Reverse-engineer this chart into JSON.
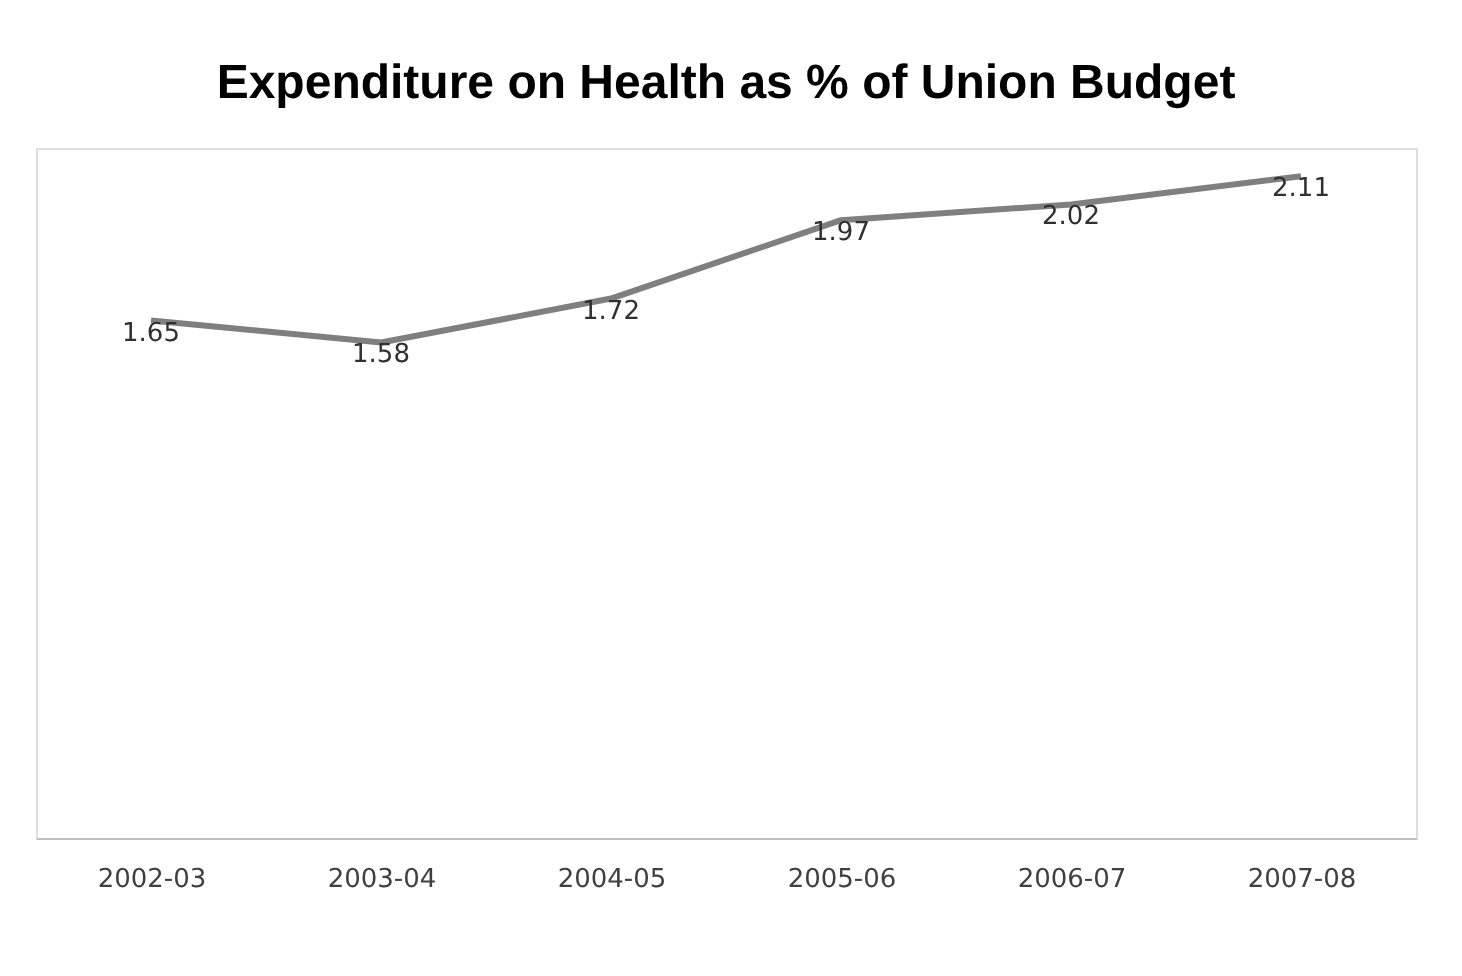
{
  "chart_data": {
    "type": "line",
    "title": "Expenditure on Health as % of Union Budget",
    "categories": [
      "2002-03",
      "2003-04",
      "2004-05",
      "2005-06",
      "2006-07",
      "2007-08"
    ],
    "series": [
      {
        "color": "#7f7f7f",
        "values": [
          1.65,
          1.58,
          1.72,
          1.97,
          2.02,
          2.11
        ]
      }
    ],
    "data_labels": true,
    "grid": false,
    "legend": false,
    "marker": "none",
    "line_style": "solid",
    "tick_labels": "x"
  }
}
